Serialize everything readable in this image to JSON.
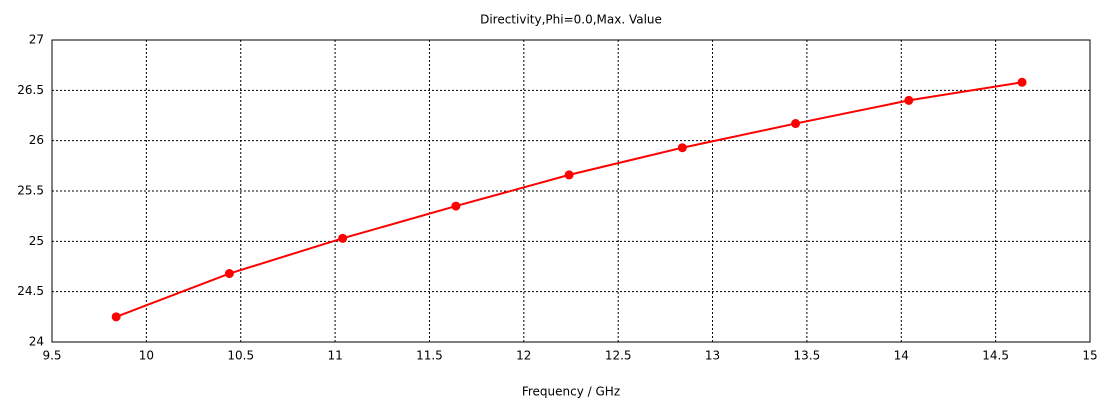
{
  "chart_data": {
    "type": "line",
    "title": "Directivity,Phi=0.0,Max. Value",
    "x_label": "Frequency / GHz",
    "x": [
      9.84,
      10.44,
      11.04,
      11.64,
      12.24,
      12.84,
      13.44,
      14.04,
      14.64
    ],
    "series": [
      {
        "name": "Directivity",
        "color": "#ff0000",
        "values": [
          24.25,
          24.68,
          25.03,
          25.35,
          25.66,
          25.93,
          26.17,
          26.4,
          26.58
        ]
      }
    ],
    "xlim": [
      9.5,
      15
    ],
    "xticks": [
      9.5,
      10,
      10.5,
      11,
      11.5,
      12,
      12.5,
      13,
      13.5,
      14,
      14.5,
      15
    ],
    "ylim": [
      24,
      27
    ],
    "yticks": [
      24,
      24.5,
      25,
      25.5,
      26,
      26.5,
      27
    ],
    "grid": true,
    "markers": true
  }
}
